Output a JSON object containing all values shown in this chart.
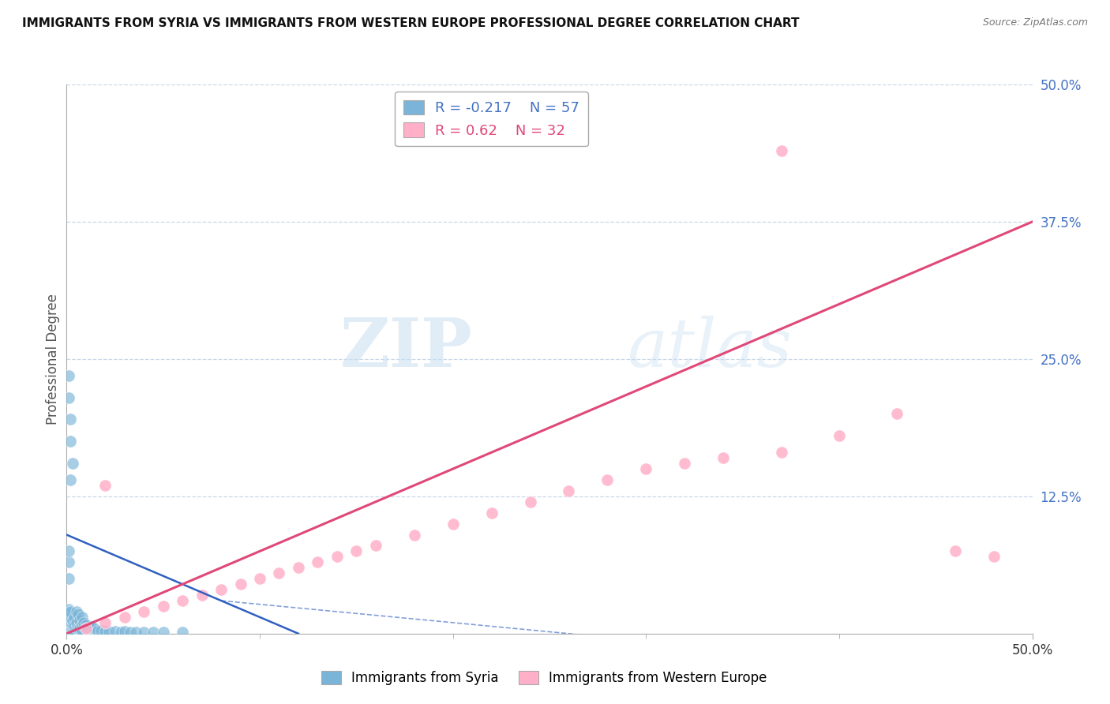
{
  "title": "IMMIGRANTS FROM SYRIA VS IMMIGRANTS FROM WESTERN EUROPE PROFESSIONAL DEGREE CORRELATION CHART",
  "source": "Source: ZipAtlas.com",
  "ylabel": "Professional Degree",
  "xlim": [
    0.0,
    0.5
  ],
  "ylim": [
    0.0,
    0.5
  ],
  "xtick_vals": [
    0.0,
    0.5
  ],
  "xtick_labels": [
    "0.0%",
    "50.0%"
  ],
  "xtick_minor_vals": [
    0.1,
    0.2,
    0.3,
    0.4
  ],
  "ytick_vals": [
    0.125,
    0.25,
    0.375,
    0.5
  ],
  "ytick_labels": [
    "12.5%",
    "25.0%",
    "37.5%",
    "50.0%"
  ],
  "grid_color": "#c8d8e8",
  "background_color": "#ffffff",
  "syria_color": "#7ab4d8",
  "western_color": "#ffb0c8",
  "syria_line_color": "#3060c0",
  "western_line_color": "#e04878",
  "syria_R": -0.217,
  "syria_N": 57,
  "western_R": 0.62,
  "western_N": 32,
  "watermark_zip": "ZIP",
  "watermark_atlas": "atlas",
  "syria_line_x": [
    0.0,
    0.12
  ],
  "syria_line_y": [
    0.09,
    0.0
  ],
  "western_line_x": [
    0.0,
    0.5
  ],
  "western_line_y": [
    0.0,
    0.375
  ],
  "syria_scatter_x": [
    0.001,
    0.001,
    0.001,
    0.001,
    0.001,
    0.001,
    0.001,
    0.001,
    0.001,
    0.001,
    0.001,
    0.001,
    0.001,
    0.001,
    0.001,
    0.002,
    0.002,
    0.002,
    0.002,
    0.002,
    0.002,
    0.003,
    0.003,
    0.003,
    0.003,
    0.004,
    0.004,
    0.004,
    0.005,
    0.005,
    0.005,
    0.006,
    0.006,
    0.007,
    0.007,
    0.008,
    0.008,
    0.008,
    0.009,
    0.01,
    0.011,
    0.012,
    0.013,
    0.014,
    0.016,
    0.018,
    0.02,
    0.022,
    0.025,
    0.028,
    0.03,
    0.033,
    0.036,
    0.04,
    0.045,
    0.05,
    0.06
  ],
  "syria_scatter_y": [
    0.001,
    0.002,
    0.003,
    0.004,
    0.005,
    0.006,
    0.008,
    0.01,
    0.012,
    0.015,
    0.018,
    0.022,
    0.05,
    0.065,
    0.075,
    0.001,
    0.002,
    0.003,
    0.01,
    0.015,
    0.02,
    0.001,
    0.004,
    0.008,
    0.012,
    0.003,
    0.007,
    0.015,
    0.005,
    0.01,
    0.02,
    0.005,
    0.018,
    0.005,
    0.012,
    0.003,
    0.008,
    0.015,
    0.01,
    0.008,
    0.005,
    0.005,
    0.006,
    0.005,
    0.003,
    0.003,
    0.002,
    0.002,
    0.002,
    0.001,
    0.002,
    0.001,
    0.001,
    0.001,
    0.001,
    0.001,
    0.001
  ],
  "syria_scatter_extra_x": [
    0.001,
    0.001,
    0.002,
    0.002,
    0.003,
    0.002
  ],
  "syria_scatter_extra_y": [
    0.235,
    0.215,
    0.195,
    0.175,
    0.155,
    0.14
  ],
  "western_scatter_x": [
    0.01,
    0.02,
    0.03,
    0.04,
    0.05,
    0.06,
    0.07,
    0.08,
    0.09,
    0.1,
    0.11,
    0.12,
    0.13,
    0.14,
    0.15,
    0.16,
    0.18,
    0.2,
    0.22,
    0.24,
    0.26,
    0.28,
    0.3,
    0.32,
    0.34,
    0.37,
    0.4,
    0.43,
    0.46,
    0.48,
    0.37,
    0.02
  ],
  "western_scatter_y": [
    0.005,
    0.01,
    0.015,
    0.02,
    0.025,
    0.03,
    0.035,
    0.04,
    0.045,
    0.05,
    0.055,
    0.06,
    0.065,
    0.07,
    0.075,
    0.08,
    0.09,
    0.1,
    0.11,
    0.12,
    0.13,
    0.14,
    0.15,
    0.155,
    0.16,
    0.165,
    0.18,
    0.2,
    0.075,
    0.07,
    0.44,
    0.135
  ]
}
